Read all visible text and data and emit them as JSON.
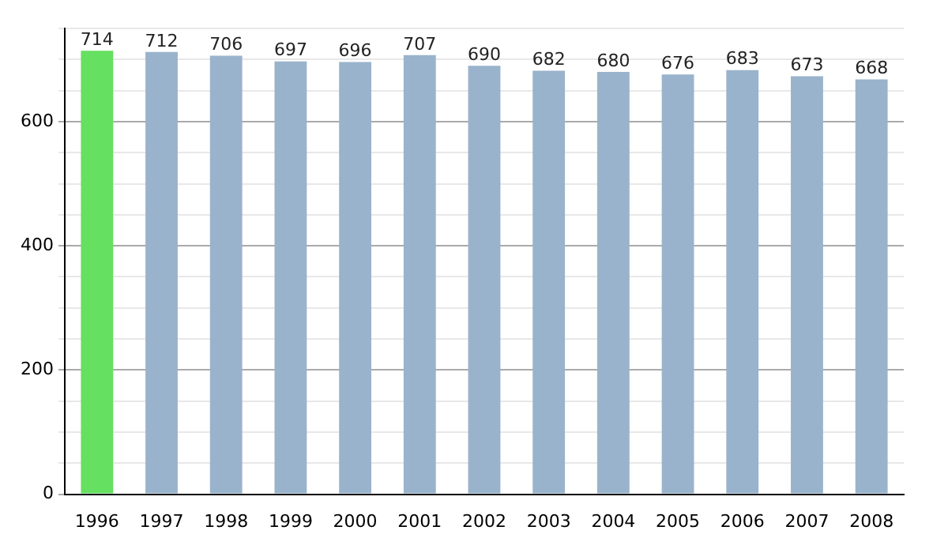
{
  "chart_data": {
    "type": "bar",
    "categories": [
      "1996",
      "1997",
      "1998",
      "1999",
      "2000",
      "2001",
      "2002",
      "2003",
      "2004",
      "2005",
      "2006",
      "2007",
      "2008"
    ],
    "values": [
      714,
      712,
      706,
      697,
      696,
      707,
      690,
      682,
      680,
      676,
      683,
      673,
      668
    ],
    "colors": [
      "#66e060",
      "#9ab3cc",
      "#9ab3cc",
      "#9ab3cc",
      "#9ab3cc",
      "#9ab3cc",
      "#9ab3cc",
      "#9ab3cc",
      "#9ab3cc",
      "#9ab3cc",
      "#9ab3cc",
      "#9ab3cc",
      "#9ab3cc"
    ],
    "ylim": [
      0,
      750
    ],
    "yticks": [
      0,
      {
        "value": 50,
        "label": null
      },
      {
        "value": 100,
        "label": null
      },
      {
        "value": 150,
        "label": null
      },
      200,
      {
        "value": 250,
        "label": null
      },
      {
        "value": 300,
        "label": null
      },
      {
        "value": 350,
        "label": null
      },
      400,
      {
        "value": 450,
        "label": null
      },
      {
        "value": 500,
        "label": null
      },
      {
        "value": 550,
        "label": null
      },
      600,
      {
        "value": 650,
        "label": null
      },
      {
        "value": 700,
        "label": null
      },
      {
        "value": 750,
        "label": null
      }
    ],
    "grid": "y",
    "data_labels": true,
    "legend": false
  }
}
